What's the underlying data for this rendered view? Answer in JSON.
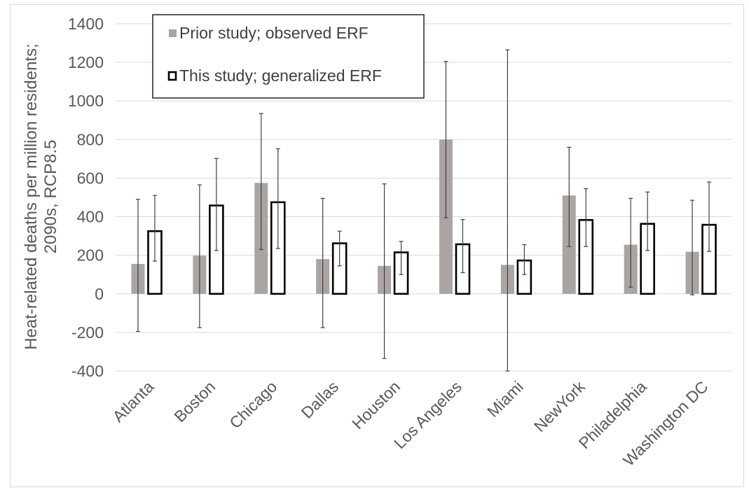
{
  "chart_data": {
    "type": "bar",
    "title": "",
    "xlabel": "",
    "ylabel_lines": [
      "Heat-related deaths per million residents;",
      "2090s, RCP8.5"
    ],
    "ylim": [
      -400,
      1400
    ],
    "ytick_step": 200,
    "grid": true,
    "legend_placement": "top-left",
    "categories": [
      "Atlanta",
      "Boston",
      "Chicago",
      "Dallas",
      "Houston",
      "Los Angeles",
      "Miami",
      "NewYork",
      "Philadelphia",
      "Washington DC"
    ],
    "series": [
      {
        "name": "Prior study; observed ERF",
        "style": "filled",
        "color": "#aaa5a3",
        "values": [
          155,
          198,
          575,
          180,
          145,
          800,
          150,
          510,
          255,
          218
        ],
        "error_low": [
          -195,
          -175,
          230,
          -175,
          -335,
          395,
          -400,
          245,
          35,
          -5
        ],
        "error_high": [
          490,
          565,
          935,
          495,
          570,
          1205,
          1265,
          760,
          495,
          485
        ]
      },
      {
        "name": "This study; generalized ERF",
        "style": "outline",
        "color": "#000000",
        "values": [
          325,
          458,
          475,
          262,
          215,
          257,
          173,
          383,
          363,
          358
        ],
        "error_low": [
          170,
          225,
          235,
          145,
          100,
          110,
          100,
          245,
          225,
          220
        ],
        "error_high": [
          510,
          702,
          752,
          325,
          272,
          385,
          255,
          545,
          528,
          580
        ]
      }
    ]
  }
}
